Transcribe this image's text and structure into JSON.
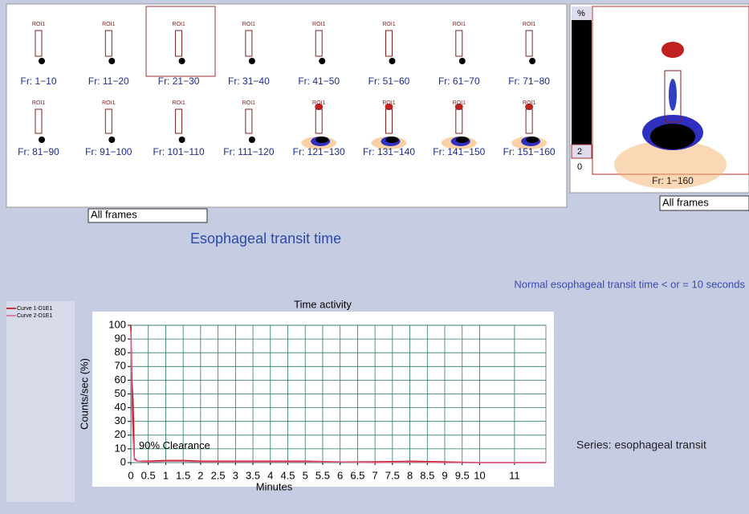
{
  "thumbnails": [
    {
      "roi": "ROI1",
      "label": "Fr: 1−10"
    },
    {
      "roi": "ROI1",
      "label": "Fr: 11−20"
    },
    {
      "roi": "ROI1",
      "label": "Fr: 21−30"
    },
    {
      "roi": "ROI1",
      "label": "Fr: 31−40"
    },
    {
      "roi": "ROI1",
      "label": "Fr: 41−50"
    },
    {
      "roi": "ROI1",
      "label": "Fr: 51−60"
    },
    {
      "roi": "ROI1",
      "label": "Fr: 61−70"
    },
    {
      "roi": "ROI1",
      "label": "Fr: 71−80"
    },
    {
      "roi": "ROI1",
      "label": "Fr: 81−90"
    },
    {
      "roi": "ROI1",
      "label": "Fr: 91−100"
    },
    {
      "roi": "ROI1",
      "label": "Fr: 101−110"
    },
    {
      "roi": "ROI1",
      "label": "Fr: 111−120"
    },
    {
      "roi": "ROI1",
      "label": "Fr: 121−130"
    },
    {
      "roi": "ROI1",
      "label": "Fr: 131−140"
    },
    {
      "roi": "ROI1",
      "label": "Fr: 141−150"
    },
    {
      "roi": "ROI1",
      "label": "Fr: 151−160"
    }
  ],
  "frames_dropdown": "All frames",
  "summary": {
    "scale_top": "%",
    "scale_mid": "2",
    "scale_bottom": "0",
    "label": "Fr: 1−160",
    "dropdown": "All frames"
  },
  "heading": "Esophageal transit time",
  "normal_note": "Normal esophageal transit time < or = 10 seconds",
  "series_note": "Series: esophageal transit",
  "chart_data": {
    "type": "line",
    "title": "Time activity",
    "x_label": "Minutes",
    "y_label": "Counts/sec (%)",
    "annotation": "90% Clearance",
    "x": [
      0,
      0.03,
      0.06,
      0.1,
      0.2,
      0.5,
      1,
      1.5,
      2,
      3,
      4,
      5,
      6,
      7,
      8,
      9,
      10,
      11,
      11.9
    ],
    "series": [
      {
        "name": "Curve 1-D1E1",
        "color": "#c00000",
        "values": [
          100,
          60,
          45,
          3,
          1,
          1,
          1.5,
          1.5,
          1,
          1,
          1,
          1,
          0.5,
          0.5,
          1,
          0.5,
          0,
          0,
          0
        ]
      },
      {
        "name": "Curve 2-D1E1",
        "color": "#e0608a",
        "values": [
          96,
          40,
          20,
          2,
          1,
          0.5,
          1,
          1,
          0.5,
          0.5,
          0.5,
          0.5,
          0.5,
          0,
          0.5,
          0,
          0,
          0,
          0
        ]
      }
    ],
    "xlim": [
      0,
      11.9
    ],
    "ylim": [
      0,
      100
    ],
    "xticks": [
      0,
      0.5,
      1,
      1.5,
      2,
      2.5,
      3,
      3.5,
      4,
      4.5,
      5,
      5.5,
      6,
      6.5,
      7,
      7.5,
      8,
      8.5,
      9,
      9.5,
      10,
      11
    ],
    "yticks": [
      0,
      10,
      20,
      30,
      40,
      50,
      60,
      70,
      80,
      90,
      100
    ],
    "grid": true
  }
}
